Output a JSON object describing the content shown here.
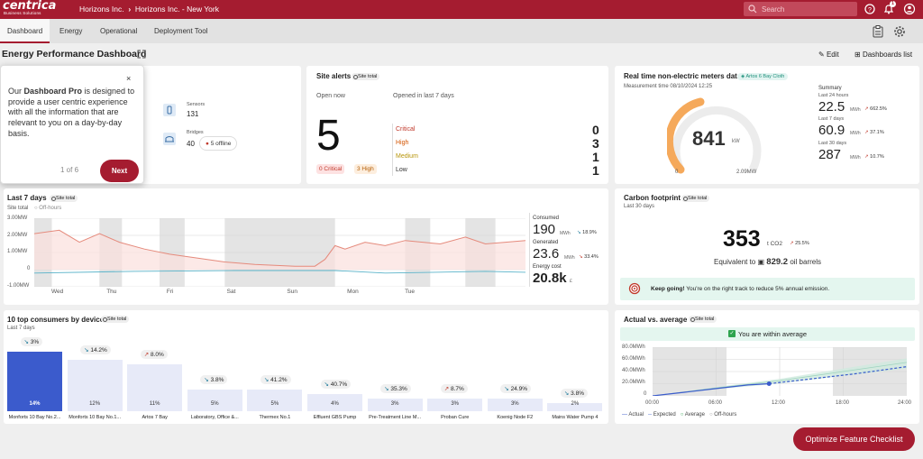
{
  "brand": {
    "name": "centrica",
    "sub": "Business Solutions",
    "accent": "#a51c30"
  },
  "breadcrumb": {
    "org": "Horizons Inc.",
    "site": "Horizons Inc. - New York"
  },
  "search": {
    "placeholder": "Search"
  },
  "notifications": {
    "count": "1"
  },
  "tabs": [
    "Dashboard",
    "Energy",
    "Operational",
    "Deployment Tool"
  ],
  "page": {
    "title": "Energy Performance Dashboard",
    "edit": "Edit",
    "dashboards_list": "Dashboards list"
  },
  "tour": {
    "text_pre": "Our ",
    "text_bold": "Dashboard Pro",
    "text_post": " is designed to provide a user centric experience with all the information that are relevant to you on a day-by-day basis.",
    "step": "1 of 6",
    "next": "Next"
  },
  "devices": {
    "sensors_label": "Sensors",
    "sensors_value": "131",
    "bridges_label": "Bridges",
    "bridges_value": "40",
    "offline": "5 offline"
  },
  "site_alerts": {
    "title": "Site alerts",
    "chip": "Site total",
    "open_now": "Open now",
    "opened_7d": "Opened in last 7 days",
    "count": "5",
    "critical_pill": "0 Critical",
    "high_pill": "3 High",
    "levels": [
      {
        "label": "Critical",
        "count": "0",
        "color": "#c0392b"
      },
      {
        "label": "High",
        "count": "3",
        "color": "#d35400"
      },
      {
        "label": "Medium",
        "count": "1",
        "color": "#b7950b"
      },
      {
        "label": "Low",
        "count": "1",
        "color": "#333333"
      }
    ]
  },
  "meters": {
    "title": "Real time non-electric meters data",
    "tag": "Artos 6 Bay Cloth",
    "time": "Measurement time 08/10/2024 12:25",
    "value": "841",
    "unit": "kW",
    "min": "0",
    "max": "2.09MW",
    "summary": "Summary",
    "rows": [
      {
        "label": "Last 24 hours",
        "value": "22.5",
        "unit": "MWh",
        "trend": "662.5%"
      },
      {
        "label": "Last 7 days",
        "value": "60.9",
        "unit": "MWh",
        "trend": "37.1%"
      },
      {
        "label": "Last 30 days",
        "value": "287",
        "unit": "MWh",
        "trend": "10.7%"
      }
    ]
  },
  "last7": {
    "title": "Last 7 days",
    "chip": "Site total",
    "site_total": "Site total",
    "off_hours": "Off-hours",
    "consumed_label": "Consumed",
    "consumed_value": "190",
    "consumed_unit": "MWh",
    "consumed_trend": "18.9%",
    "generated_label": "Generated",
    "generated_value": "23.6",
    "generated_unit": "MWh",
    "generated_trend": "33.4%",
    "cost_label": "Energy cost",
    "cost_value": "20.8k",
    "cost_unit": "£",
    "y_ticks": [
      "3.00MW",
      "2.00MW",
      "1.00MW",
      "0",
      "-1.00MW"
    ],
    "days": [
      "Wed",
      "Thu",
      "Fri",
      "Sat",
      "Sun",
      "Mon",
      "Tue"
    ]
  },
  "carbon": {
    "title": "Carbon footprint",
    "chip": "Site total",
    "period": "Last 30 days",
    "value": "353",
    "unit": "t CO2",
    "trend": "25.5%",
    "equiv_pre": "Equivalent to",
    "equiv_value": "829.2",
    "equiv_unit": "oil barrels",
    "message_bold": "Keep going!",
    "message": " You're on the right track to reduce 5% annual emission."
  },
  "consumers": {
    "title": "10 top consumers by device",
    "chip": "Site total",
    "period": "Last 7 days",
    "items": [
      {
        "name": "Monforts 10 Bay No.2...",
        "share": "14%",
        "trend": "3%",
        "up": false,
        "value": 14
      },
      {
        "name": "Monforts 10 Bay No.1...",
        "share": "12%",
        "trend": "14.2%",
        "up": false,
        "value": 12
      },
      {
        "name": "Artos 7 Bay",
        "share": "11%",
        "trend": "8.0%",
        "up": true,
        "value": 11
      },
      {
        "name": "Laboratory, Office &...",
        "share": "5%",
        "trend": "3.8%",
        "up": false,
        "value": 5
      },
      {
        "name": "Thermex No.1",
        "share": "5%",
        "trend": "41.2%",
        "up": false,
        "value": 5
      },
      {
        "name": "Effluent GBS Pump",
        "share": "4%",
        "trend": "40.7%",
        "up": false,
        "value": 4
      },
      {
        "name": "Pre-Treatment Line M...",
        "share": "3%",
        "trend": "35.3%",
        "up": false,
        "value": 3
      },
      {
        "name": "Proban Cure",
        "share": "3%",
        "trend": "8.7%",
        "up": true,
        "value": 3
      },
      {
        "name": "Koenig Node F2",
        "share": "3%",
        "trend": "24.9%",
        "up": false,
        "value": 3
      },
      {
        "name": "Mains Water Pump 4",
        "share": "2%",
        "trend": "3.8%",
        "up": false,
        "value": 2
      }
    ]
  },
  "actual": {
    "title": "Actual vs. average",
    "chip": "Site total",
    "status": "You are within average",
    "y_ticks": [
      "80.0MWh",
      "60.0MWh",
      "40.0MWh",
      "20.0MWh",
      "0"
    ],
    "x_ticks": [
      "00:00",
      "06:00",
      "12:00",
      "18:00",
      "24:00"
    ],
    "legend": [
      "Actual",
      "Expected",
      "Average",
      "Off-hours"
    ]
  },
  "fab": {
    "label": "Optimize Feature Checklist"
  },
  "chart_data": [
    {
      "type": "line",
      "title": "Last 7 days",
      "ylabel": "",
      "xlabel": "",
      "ylim": [
        -1.0,
        3.0
      ],
      "unit": "MW",
      "categories": [
        "Wed",
        "Thu",
        "Fri",
        "Sat",
        "Sun",
        "Mon",
        "Tue"
      ],
      "series": [
        {
          "name": "Site total",
          "points": [
            [
              0,
              2.1
            ],
            [
              0.5,
              2.3
            ],
            [
              0.9,
              1.6
            ],
            [
              1.3,
              2.1
            ],
            [
              1.7,
              1.6
            ],
            [
              2.2,
              1.2
            ],
            [
              2.7,
              0.9
            ],
            [
              3.2,
              0.7
            ],
            [
              3.8,
              0.45
            ],
            [
              4.4,
              0.3
            ],
            [
              5.2,
              0.2
            ],
            [
              5.6,
              0.2
            ],
            [
              5.8,
              0.6
            ],
            [
              6.0,
              1.4
            ],
            [
              6.2,
              1.2
            ],
            [
              6.6,
              1.6
            ],
            [
              7.0,
              1.4
            ],
            [
              7.4,
              1.7
            ],
            [
              8.1,
              1.5
            ],
            [
              8.6,
              1.9
            ],
            [
              9.0,
              1.5
            ],
            [
              9.4,
              1.6
            ],
            [
              9.8,
              1.7
            ]
          ]
        },
        {
          "name": "Generation",
          "points": [
            [
              0,
              -0.2
            ],
            [
              2,
              -0.1
            ],
            [
              4,
              -0.05
            ],
            [
              6,
              -0.05
            ],
            [
              7,
              -0.2
            ],
            [
              8,
              -0.15
            ],
            [
              9,
              -0.1
            ],
            [
              9.8,
              -0.15
            ]
          ]
        }
      ]
    },
    {
      "type": "bar",
      "title": "10 top consumers by device",
      "categories": [
        "Monforts 10 Bay No.2...",
        "Monforts 10 Bay No.1...",
        "Artos 7 Bay",
        "Laboratory, Office &...",
        "Thermex No.1",
        "Effluent GBS Pump",
        "Pre-Treatment Line M...",
        "Proban Cure",
        "Koenig Node F2",
        "Mains Water Pump 4"
      ],
      "values": [
        14,
        12,
        11,
        5,
        5,
        4,
        3,
        3,
        3,
        2
      ],
      "unit": "%"
    },
    {
      "type": "line",
      "title": "Actual vs. average",
      "ylim": [
        0,
        80
      ],
      "unit": "MWh",
      "x": [
        "00:00",
        "06:00",
        "12:00",
        "18:00",
        "24:00"
      ],
      "series": [
        {
          "name": "Actual",
          "points": [
            [
              0,
              0
            ],
            [
              3,
              6
            ],
            [
              6,
              12
            ],
            [
              9,
              18
            ],
            [
              11,
              20
            ]
          ]
        },
        {
          "name": "Expected",
          "points": [
            [
              11,
              20
            ],
            [
              15,
              28
            ],
            [
              19,
              36
            ],
            [
              24,
              48
            ]
          ]
        },
        {
          "name": "Average",
          "points": [
            [
              0,
              0
            ],
            [
              6,
              13
            ],
            [
              12,
              25
            ],
            [
              18,
              40
            ],
            [
              24,
              55
            ]
          ]
        }
      ]
    }
  ]
}
